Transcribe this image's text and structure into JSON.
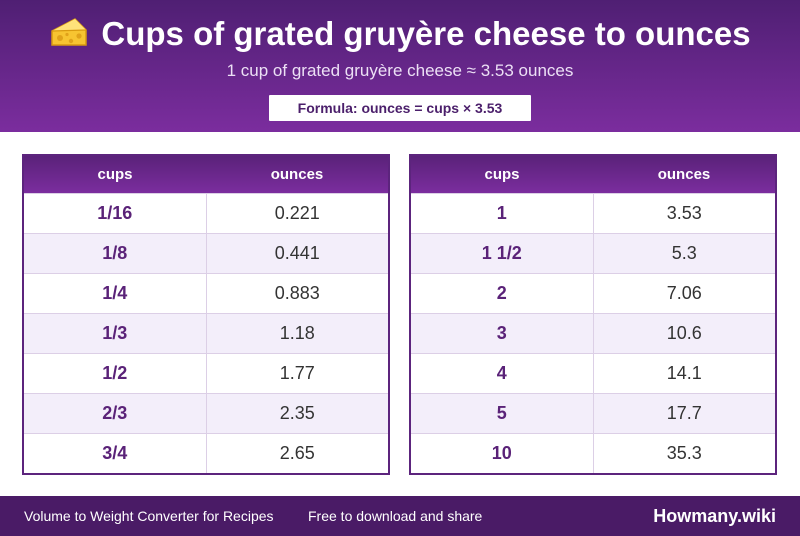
{
  "header": {
    "title": "Cups of grated gruyère cheese to ounces",
    "title_icon": "cheese-icon",
    "subtitle": "1 cup of grated gruyère cheese ≈ 3.53 ounces",
    "formula": "Formula: ounces = cups × 3.53"
  },
  "tables": [
    {
      "headers": {
        "cups": "cups",
        "ounces": "ounces"
      },
      "rows": [
        {
          "cups": "1/16",
          "ounces": "0.221"
        },
        {
          "cups": "1/8",
          "ounces": "0.441"
        },
        {
          "cups": "1/4",
          "ounces": "0.883"
        },
        {
          "cups": "1/3",
          "ounces": "1.18"
        },
        {
          "cups": "1/2",
          "ounces": "1.77"
        },
        {
          "cups": "2/3",
          "ounces": "2.35"
        },
        {
          "cups": "3/4",
          "ounces": "2.65"
        }
      ]
    },
    {
      "headers": {
        "cups": "cups",
        "ounces": "ounces"
      },
      "rows": [
        {
          "cups": "1",
          "ounces": "3.53"
        },
        {
          "cups": "1 1/2",
          "ounces": "5.3"
        },
        {
          "cups": "2",
          "ounces": "7.06"
        },
        {
          "cups": "3",
          "ounces": "10.6"
        },
        {
          "cups": "4",
          "ounces": "14.1"
        },
        {
          "cups": "5",
          "ounces": "17.7"
        },
        {
          "cups": "10",
          "ounces": "35.3"
        }
      ]
    }
  ],
  "footer": {
    "left": "Volume to Weight Converter for Recipes",
    "mid": "Free to download and share",
    "brand": "Howmany.wiki"
  },
  "colors": {
    "header_top": "#4f1f73",
    "header_bottom": "#7b2d9e",
    "accent_text": "#5a2278",
    "row_alt": "#f3eefa",
    "footer": "#4a1b66"
  }
}
